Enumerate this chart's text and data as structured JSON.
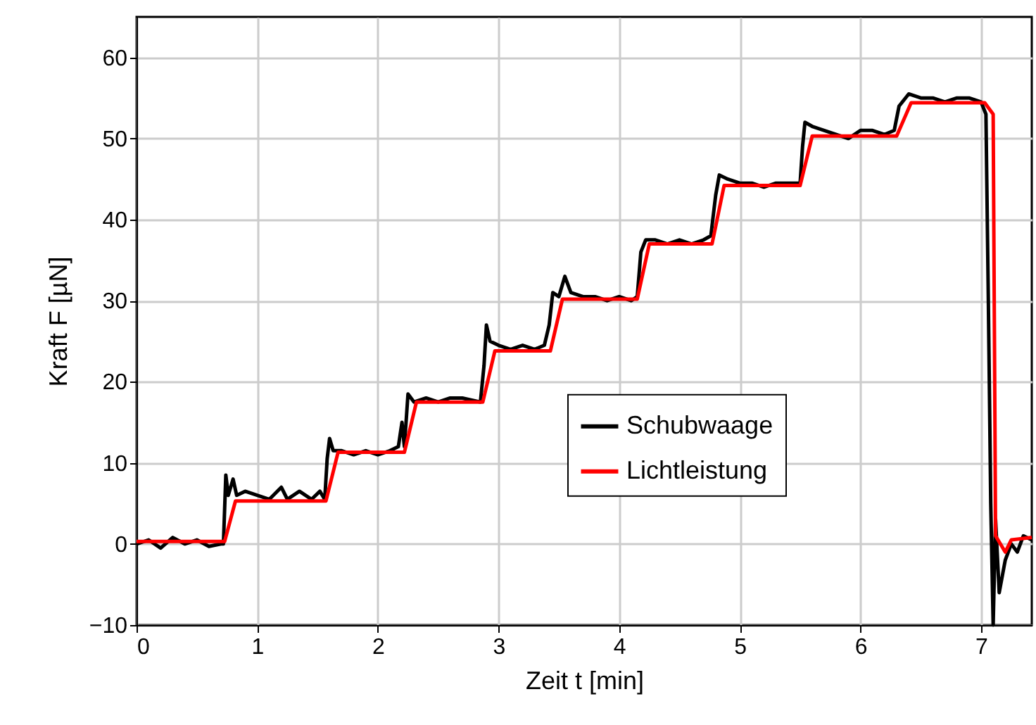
{
  "chart_data": {
    "type": "line",
    "xlabel": "Zeit t [min]",
    "ylabel": "Kraft F [µN]",
    "xlim": [
      0,
      7.42
    ],
    "ylim": [
      -10,
      65
    ],
    "xticks": [
      0,
      1,
      2,
      3,
      4,
      5,
      6,
      7
    ],
    "yticks": [
      -10,
      0,
      10,
      20,
      30,
      40,
      50,
      60
    ],
    "grid": true,
    "legend": "right",
    "marker": "none",
    "line_style": "solid",
    "series": [
      {
        "name": "Schubwaage",
        "color": "#000000",
        "x": [
          0,
          0.1,
          0.2,
          0.3,
          0.4,
          0.5,
          0.6,
          0.7,
          0.72,
          0.74,
          0.76,
          0.8,
          0.83,
          0.9,
          1.0,
          1.1,
          1.2,
          1.25,
          1.35,
          1.45,
          1.52,
          1.56,
          1.58,
          1.6,
          1.63,
          1.7,
          1.8,
          1.9,
          2.0,
          2.1,
          2.17,
          2.2,
          2.22,
          2.25,
          2.3,
          2.4,
          2.5,
          2.6,
          2.7,
          2.85,
          2.88,
          2.9,
          2.93,
          3.0,
          3.1,
          3.2,
          3.3,
          3.38,
          3.42,
          3.45,
          3.5,
          3.55,
          3.6,
          3.7,
          3.8,
          3.9,
          4.0,
          4.1,
          4.15,
          4.18,
          4.22,
          4.3,
          4.4,
          4.5,
          4.6,
          4.7,
          4.76,
          4.8,
          4.83,
          4.9,
          5.0,
          5.1,
          5.2,
          5.3,
          5.4,
          5.5,
          5.52,
          5.54,
          5.6,
          5.7,
          5.8,
          5.9,
          6.0,
          6.1,
          6.2,
          6.28,
          6.32,
          6.4,
          6.5,
          6.6,
          6.7,
          6.8,
          6.9,
          7.0,
          7.04,
          7.06,
          7.08,
          7.1,
          7.12,
          7.15,
          7.2,
          7.25,
          7.3,
          7.35,
          7.42
        ],
        "values": [
          0,
          0.5,
          -0.5,
          0.8,
          0,
          0.5,
          -0.3,
          0,
          0,
          8.5,
          6,
          8,
          6,
          6.5,
          6,
          5.5,
          7,
          5.5,
          6.5,
          5.5,
          6.5,
          5.5,
          10.5,
          13,
          11.5,
          11.5,
          11,
          11.5,
          11,
          11.5,
          12,
          15,
          12,
          18.5,
          17.5,
          18,
          17.5,
          18,
          18,
          17.5,
          22,
          27,
          25,
          24.5,
          24,
          24.5,
          24,
          24.5,
          27,
          31,
          30.5,
          33,
          31,
          30.5,
          30.5,
          30,
          30.5,
          30,
          30.5,
          36,
          37.5,
          37.5,
          37,
          37.5,
          37,
          37.5,
          38,
          43,
          45.5,
          45,
          44.5,
          44.5,
          44,
          44.5,
          44.5,
          44.5,
          49,
          52,
          51.5,
          51,
          50.5,
          50,
          51,
          51,
          50.5,
          51,
          54,
          55.5,
          55,
          55,
          54.5,
          55,
          55,
          54.5,
          53,
          30,
          5,
          -10,
          3,
          -6,
          -2,
          0,
          -1,
          1,
          0.5
        ]
      },
      {
        "name": "Lichtleistung",
        "color": "#ff0000",
        "x": [
          0,
          0.73,
          0.82,
          1.57,
          1.67,
          2.22,
          2.32,
          2.87,
          2.97,
          3.43,
          3.53,
          4.15,
          4.25,
          4.77,
          4.87,
          5.5,
          5.6,
          6.3,
          6.42,
          7.03,
          7.1,
          7.12,
          7.2,
          7.25,
          7.42
        ],
        "values": [
          0.3,
          0.3,
          5.3,
          5.3,
          11.3,
          11.3,
          17.5,
          17.5,
          23.8,
          23.8,
          30.2,
          30.2,
          37,
          37,
          44.2,
          44.2,
          50.3,
          50.3,
          54.4,
          54.4,
          53,
          1,
          -1,
          0.5,
          0.8
        ]
      }
    ]
  }
}
